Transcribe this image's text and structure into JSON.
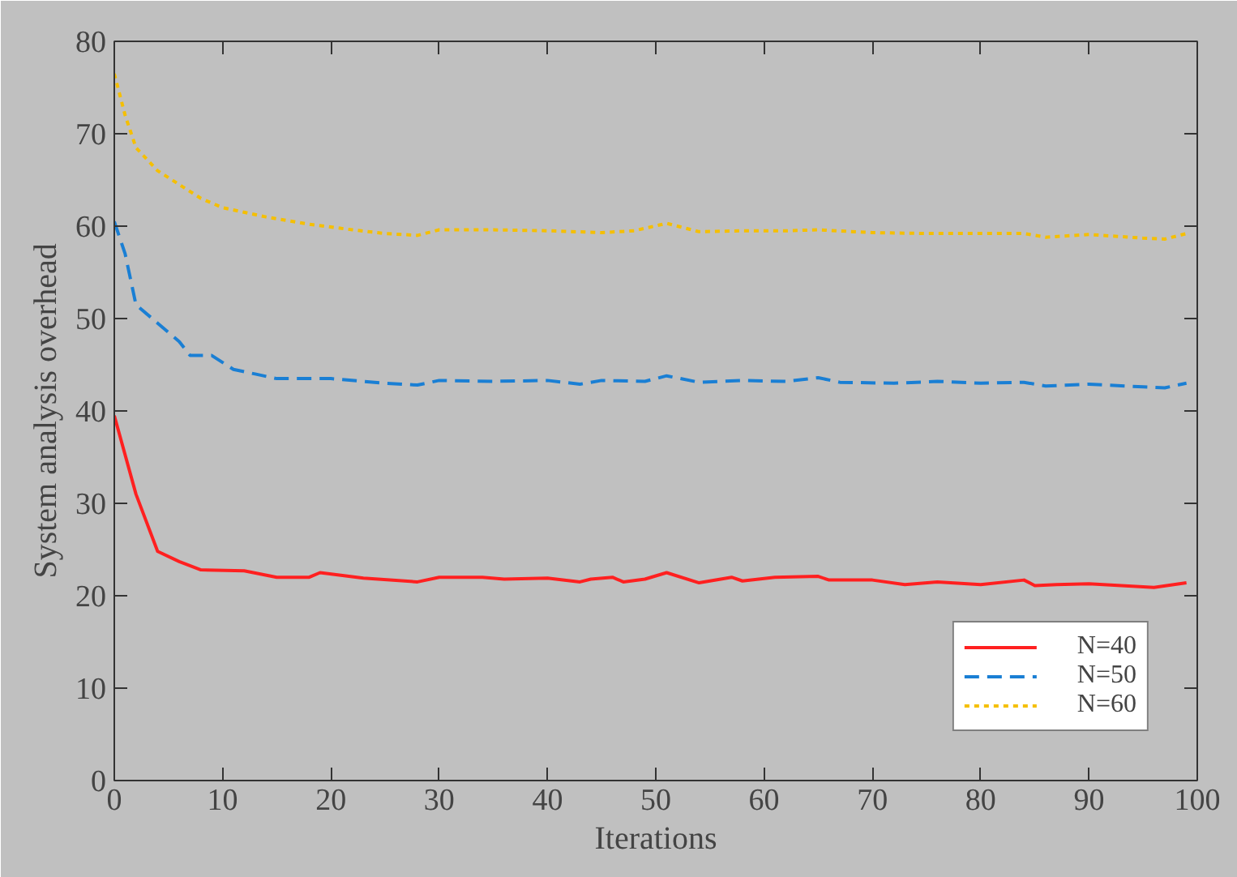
{
  "chart_data": {
    "type": "line",
    "xlabel": "Iterations",
    "ylabel": "System analysis overhead",
    "xlim": [
      0,
      100
    ],
    "ylim": [
      0,
      80
    ],
    "xticks": [
      0,
      10,
      20,
      30,
      40,
      50,
      60,
      70,
      80,
      90,
      100
    ],
    "yticks": [
      0,
      10,
      20,
      30,
      40,
      50,
      60,
      70,
      80
    ],
    "grid": false,
    "legend": "bottom right",
    "marker": "none",
    "series": [
      {
        "name": "N=40",
        "color": "#ff2020",
        "line_style": "solid",
        "x": [
          0,
          2,
          4,
          6,
          8,
          12,
          15,
          18,
          19,
          23,
          28,
          30,
          34,
          36,
          40,
          43,
          44,
          46,
          47,
          49,
          51,
          54,
          57,
          58,
          61,
          65,
          66,
          70,
          73,
          76,
          80,
          84,
          85,
          87,
          90,
          96,
          99
        ],
        "values": [
          39.5,
          31,
          24.8,
          23.7,
          22.8,
          22.7,
          22,
          22,
          22.5,
          21.9,
          21.5,
          22,
          22,
          21.8,
          21.9,
          21.5,
          21.8,
          22,
          21.5,
          21.8,
          22.5,
          21.4,
          22,
          21.6,
          22,
          22.1,
          21.7,
          21.7,
          21.2,
          21.5,
          21.2,
          21.7,
          21.1,
          21.2,
          21.3,
          20.9,
          21.4
        ]
      },
      {
        "name": "N=50",
        "color": "#1a7fd4",
        "line_style": "dashed",
        "x": [
          0,
          1,
          2,
          4,
          6,
          7,
          9,
          11,
          13,
          15,
          20,
          25,
          28,
          30,
          35,
          40,
          43,
          45,
          49,
          51,
          54,
          58,
          62,
          65,
          67,
          72,
          76,
          80,
          84,
          86,
          90,
          95,
          97,
          99
        ],
        "values": [
          60.5,
          57,
          51.5,
          49.5,
          47.5,
          46,
          46,
          44.5,
          44,
          43.5,
          43.5,
          43,
          42.8,
          43.3,
          43.2,
          43.3,
          42.9,
          43.3,
          43.2,
          43.8,
          43.1,
          43.3,
          43.2,
          43.6,
          43.1,
          43,
          43.2,
          43,
          43.1,
          42.7,
          42.9,
          42.6,
          42.5,
          43
        ]
      },
      {
        "name": "N=60",
        "color": "#f5bf00",
        "line_style": "dotted",
        "x": [
          0,
          1,
          2,
          4,
          6,
          8,
          10,
          14,
          18,
          22,
          25,
          28,
          30,
          35,
          40,
          45,
          48,
          51,
          54,
          58,
          62,
          65,
          70,
          75,
          80,
          84,
          86,
          90,
          95,
          97,
          99
        ],
        "values": [
          76.5,
          72,
          68.5,
          66,
          64.5,
          63,
          62,
          61,
          60.2,
          59.6,
          59.2,
          59,
          59.6,
          59.6,
          59.5,
          59.3,
          59.5,
          60.3,
          59.4,
          59.5,
          59.5,
          59.6,
          59.3,
          59.2,
          59.2,
          59.2,
          58.8,
          59.1,
          58.7,
          58.6,
          59.2
        ]
      }
    ]
  }
}
